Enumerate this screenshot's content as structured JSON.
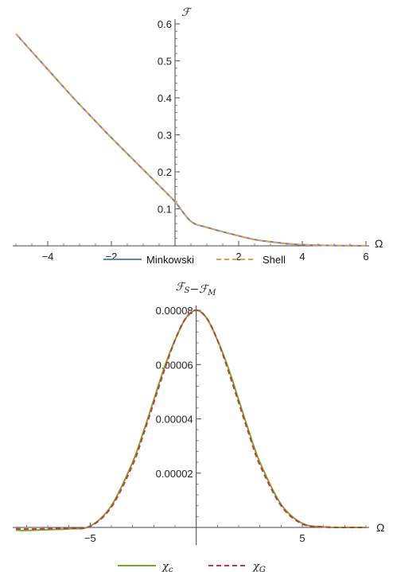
{
  "chart_data": [
    {
      "type": "line",
      "title": "",
      "ylabel": "ℱ",
      "xlabel": "Ω",
      "xlim": [
        -5,
        6
      ],
      "ylim": [
        0,
        0.6
      ],
      "xticks": [
        -4,
        -2,
        2,
        4,
        6
      ],
      "xtick_labels": [
        "−4",
        "−2",
        "2",
        "4",
        "6"
      ],
      "yticks": [
        0.1,
        0.2,
        0.3,
        0.4,
        0.5,
        0.6
      ],
      "ytick_labels": [
        "0.1",
        "0.2",
        "0.3",
        "0.4",
        "0.5",
        "0.6"
      ],
      "legend_position": "bottom",
      "series": [
        {
          "name": "Minkowski",
          "color": "#5b83c6",
          "dash": "solid",
          "x": [
            -5,
            -4.5,
            -4,
            -3.5,
            -3,
            -2.5,
            -2,
            -1.5,
            -1,
            -0.5,
            0,
            0.5,
            1,
            1.5,
            2,
            2.5,
            3,
            3.5,
            4,
            4.5,
            5,
            5.5,
            6
          ],
          "y": [
            0.573,
            0.525,
            0.477,
            0.429,
            0.382,
            0.337,
            0.292,
            0.249,
            0.206,
            0.163,
            0.119,
            0.066,
            0.05,
            0.038,
            0.027,
            0.017,
            0.011,
            0.006,
            0.003,
            0.0015,
            0.0008,
            0.0004,
            0.0002
          ]
        },
        {
          "name": "Shell",
          "color": "#e8a13a",
          "dash": "dashed",
          "x": [
            -5,
            -4.5,
            -4,
            -3.5,
            -3,
            -2.5,
            -2,
            -1.5,
            -1,
            -0.5,
            0,
            0.5,
            1,
            1.5,
            2,
            2.5,
            3,
            3.5,
            4,
            4.5,
            5,
            5.5,
            6
          ],
          "y": [
            0.573,
            0.525,
            0.477,
            0.429,
            0.382,
            0.337,
            0.292,
            0.249,
            0.206,
            0.163,
            0.119,
            0.066,
            0.05,
            0.038,
            0.027,
            0.017,
            0.011,
            0.006,
            0.003,
            0.0015,
            0.0008,
            0.0004,
            0.0002
          ]
        }
      ]
    },
    {
      "type": "line",
      "title": "ℱS−ℱM",
      "xlabel": "Ω",
      "ylabel": "",
      "xlim": [
        -8.5,
        8
      ],
      "ylim": [
        0,
        8e-05
      ],
      "xticks": [
        -5,
        5
      ],
      "xtick_labels": [
        "−5",
        "5"
      ],
      "yticks": [
        2e-05,
        4e-05,
        6e-05,
        8e-05
      ],
      "ytick_labels": [
        "0.00002",
        "0.00004",
        "0.00006",
        "0.00008"
      ],
      "legend_position": "bottom",
      "series": [
        {
          "name": "χc",
          "color": "#7aa62a",
          "dash": "solid",
          "x": [
            -8.5,
            -8,
            -7,
            -6,
            -5,
            -4,
            -3,
            -2.5,
            -2,
            -1.5,
            -1,
            -0.5,
            0,
            0.5,
            1,
            1.5,
            2,
            2.5,
            3,
            4,
            5,
            6,
            7,
            8
          ],
          "y": [
            -1e-06,
            -1.1e-06,
            -8e-07,
            -5e-07,
            5e-07,
            8e-06,
            2.4e-05,
            3.5e-05,
            4.7e-05,
            5.9e-05,
            6.9e-05,
            7.7e-05,
            8e-05,
            7.7e-05,
            6.9e-05,
            5.9e-05,
            4.7e-05,
            3.5e-05,
            2.4e-05,
            8.5e-06,
            1.5e-06,
            2e-07,
            0.0,
            0.0
          ]
        },
        {
          "name": "χG",
          "color": "#c43a3a",
          "dash": "dashed",
          "x": [
            -8.5,
            -8,
            -7,
            -6,
            -5,
            -4,
            -3,
            -2.5,
            -2,
            -1.5,
            -1,
            -0.5,
            0,
            0.5,
            1,
            1.5,
            2,
            2.5,
            3,
            4,
            5,
            6,
            7,
            8
          ],
          "y": [
            -5e-07,
            -6e-07,
            -5e-07,
            -3e-07,
            4e-07,
            7.5e-06,
            2.3e-05,
            3.4e-05,
            4.6e-05,
            5.8e-05,
            6.9e-05,
            7.7e-05,
            8e-05,
            7.7e-05,
            6.9e-05,
            5.8e-05,
            4.6e-05,
            3.4e-05,
            2.3e-05,
            8e-06,
            1.3e-06,
            2e-07,
            0.0,
            0.0
          ]
        }
      ]
    }
  ]
}
